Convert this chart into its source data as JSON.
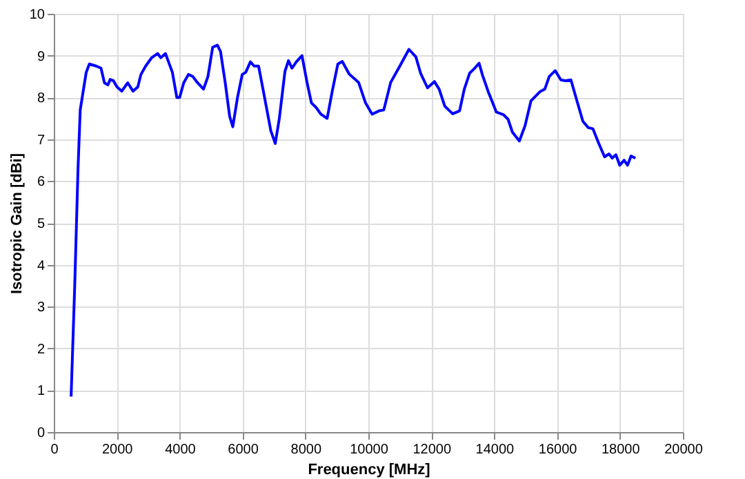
{
  "chart_data": {
    "type": "line",
    "xlabel": "Frequency [MHz]",
    "ylabel": "Isotropic Gain [dBi]",
    "x": [
      550,
      665,
      770,
      840,
      945,
      1030,
      1130,
      1350,
      1500,
      1610,
      1720,
      1790,
      1895,
      2010,
      2160,
      2350,
      2520,
      2670,
      2770,
      2920,
      3110,
      3300,
      3400,
      3550,
      3770,
      3910,
      4000,
      4130,
      4280,
      4420,
      4570,
      4760,
      4900,
      5050,
      5200,
      5300,
      5450,
      5590,
      5690,
      5840,
      5990,
      6100,
      6250,
      6370,
      6510,
      6650,
      6900,
      7040,
      7170,
      7350,
      7460,
      7570,
      7710,
      7890,
      8050,
      8190,
      8340,
      8490,
      8690,
      8850,
      9030,
      9170,
      9390,
      9690,
      9910,
      10120,
      10340,
      10490,
      10710,
      11000,
      11290,
      11510,
      11660,
      11880,
      12100,
      12250,
      12430,
      12680,
      12900,
      13050,
      13220,
      13370,
      13520,
      13630,
      13810,
      14070,
      14290,
      14440,
      14580,
      14800,
      14980,
      15170,
      15460,
      15610,
      15750,
      15940,
      16120,
      16260,
      16440,
      16630,
      16820,
      16990,
      17140,
      17320,
      17510,
      17650,
      17750,
      17870,
      17990,
      18130,
      18240,
      18350,
      18490
    ],
    "series": [
      {
        "color": "#0000ff",
        "values": [
          0.85,
          3.5,
          6.3,
          7.7,
          8.2,
          8.6,
          8.8,
          8.75,
          8.7,
          8.35,
          8.3,
          8.43,
          8.4,
          8.25,
          8.15,
          8.35,
          8.15,
          8.25,
          8.55,
          8.75,
          8.95,
          9.05,
          8.95,
          9.05,
          8.6,
          8.0,
          8.0,
          8.35,
          8.55,
          8.5,
          8.35,
          8.2,
          8.5,
          9.2,
          9.25,
          9.1,
          8.35,
          7.55,
          7.3,
          8.0,
          8.55,
          8.6,
          8.85,
          8.75,
          8.75,
          8.2,
          7.2,
          6.9,
          7.5,
          8.63,
          8.88,
          8.7,
          8.85,
          9.0,
          8.36,
          7.87,
          7.76,
          7.6,
          7.5,
          8.14,
          8.8,
          8.86,
          8.56,
          8.36,
          7.87,
          7.6,
          7.68,
          7.7,
          8.36,
          8.75,
          9.15,
          8.97,
          8.58,
          8.23,
          8.38,
          8.2,
          7.79,
          7.61,
          7.68,
          8.2,
          8.58,
          8.69,
          8.82,
          8.53,
          8.14,
          7.65,
          7.59,
          7.48,
          7.17,
          6.96,
          7.32,
          7.92,
          8.14,
          8.2,
          8.5,
          8.64,
          8.42,
          8.4,
          8.42,
          7.92,
          7.43,
          7.28,
          7.25,
          6.91,
          6.58,
          6.65,
          6.55,
          6.63,
          6.38,
          6.5,
          6.38,
          6.6,
          6.55
        ]
      }
    ],
    "xlim": [
      0,
      20000
    ],
    "xticks": [
      0,
      2000,
      4000,
      6000,
      8000,
      10000,
      12000,
      14000,
      16000,
      18000,
      20000
    ],
    "ylim": [
      0,
      10
    ],
    "yticks": [
      0,
      1,
      2,
      3,
      4,
      5,
      6,
      7,
      8,
      9,
      10
    ],
    "grid": true,
    "legend": false,
    "marker": "none",
    "line_style": "solid"
  }
}
